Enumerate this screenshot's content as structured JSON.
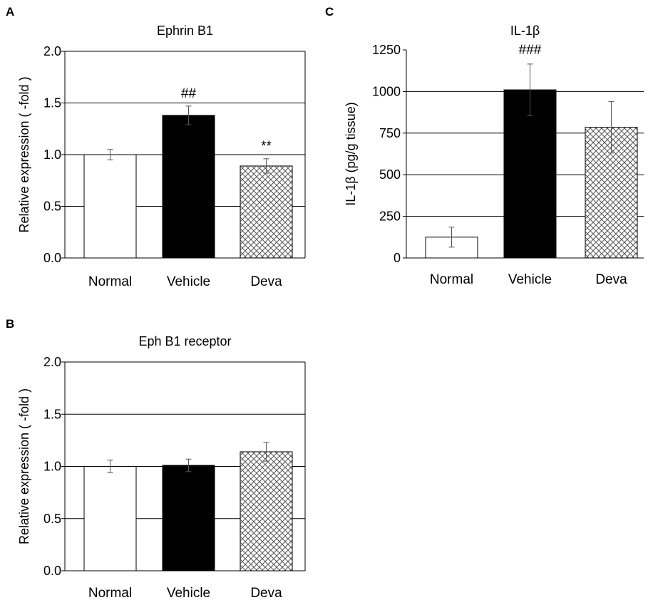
{
  "chart_data": [
    {
      "panel": "A",
      "type": "bar",
      "title": "Ephrin B1",
      "ylabel": "Relative expression ( -fold )",
      "xlabel": "",
      "ylim": [
        0,
        2.0
      ],
      "yticks": [
        "0.0",
        "0.5",
        "1.0",
        "1.5",
        "2.0"
      ],
      "grid": true,
      "categories": [
        "Normal",
        "Vehicle",
        "Deva"
      ],
      "values": [
        1.0,
        1.38,
        0.89
      ],
      "errors": [
        0.05,
        0.09,
        0.07
      ],
      "fills": [
        "white",
        "black",
        "crosshatch"
      ],
      "annotations": [
        "",
        "##",
        "**"
      ]
    },
    {
      "panel": "B",
      "type": "bar",
      "title": "Eph B1 receptor",
      "ylabel": "Relative expression ( -fold )",
      "xlabel": "",
      "ylim": [
        0,
        2.0
      ],
      "yticks": [
        "0.0",
        "0.5",
        "1.0",
        "1.5",
        "2.0"
      ],
      "grid": true,
      "categories": [
        "Normal",
        "Vehicle",
        "Deva"
      ],
      "values": [
        1.0,
        1.01,
        1.14
      ],
      "errors": [
        0.06,
        0.06,
        0.09
      ],
      "fills": [
        "white",
        "black",
        "crosshatch"
      ],
      "annotations": [
        "",
        "",
        ""
      ]
    },
    {
      "panel": "C",
      "type": "bar",
      "title": "IL-1β",
      "ylabel": "IL-1β (pg/g tissue)",
      "xlabel": "",
      "ylim": [
        0,
        1250
      ],
      "yticks": [
        "0",
        "250",
        "500",
        "750",
        "1000",
        "1250"
      ],
      "grid": true,
      "categories": [
        "Normal",
        "Vehicle",
        "Deva"
      ],
      "values": [
        125,
        1010,
        785
      ],
      "errors": [
        60,
        155,
        155
      ],
      "fills": [
        "white",
        "black",
        "crosshatch"
      ],
      "annotations": [
        "",
        "###",
        ""
      ]
    }
  ]
}
